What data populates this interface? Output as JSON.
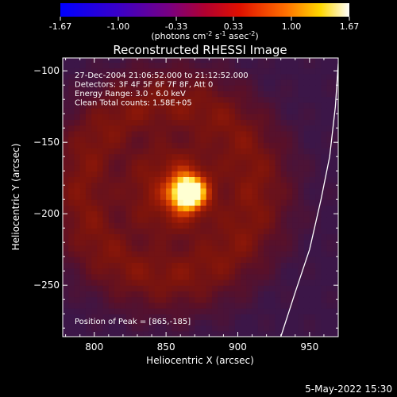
{
  "colorbar": {
    "ticks": [
      "-1.67",
      "-1.00",
      "-0.33",
      "0.33",
      "1.00",
      "1.67"
    ],
    "unit_parts": [
      "(photons cm",
      "-2",
      " s",
      "-1",
      " asec",
      "-2",
      ")"
    ],
    "range": [
      -1.67,
      1.67
    ]
  },
  "chart_data": {
    "type": "heatmap",
    "title": "Reconstructed RHESSI Image",
    "xlabel": "Heliocentric X (arcsec)",
    "ylabel": "Heliocentric Y (arcsec)",
    "xlim": [
      778,
      970
    ],
    "ylim": [
      -286,
      -91
    ],
    "xticks": [
      800,
      850,
      900,
      950
    ],
    "yticks": [
      -100,
      -150,
      -200,
      -250
    ],
    "info_lines": [
      "27-Dec-2004 21:06:52.000 to 21:12:52.000",
      "Detectors: 3F 4F 5F 6F 7F 8F, Att 0",
      "Energy Range: 3.0 - 6.0 keV",
      "Clean     Total counts: 1.58E+05"
    ],
    "peak_label": "Position of Peak = [865,-185]",
    "peak": [
      865,
      -185
    ],
    "ring": {
      "center": [
        852,
        -183
      ],
      "radius": 78
    },
    "limb": [
      [
        930,
        -286
      ],
      [
        940,
        -255
      ],
      [
        950,
        -225
      ],
      [
        958,
        -190
      ],
      [
        964,
        -160
      ],
      [
        968,
        -125
      ],
      [
        970,
        -95
      ]
    ]
  },
  "footer": {
    "date": "5-May-2022 15:30"
  }
}
